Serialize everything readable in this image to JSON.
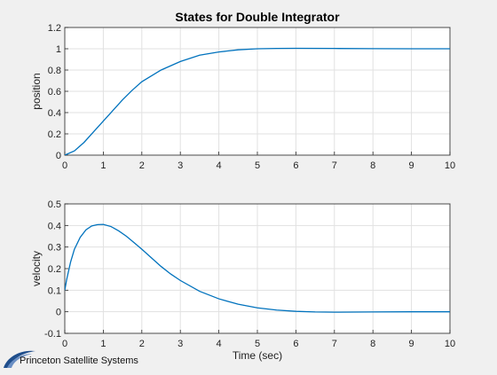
{
  "logo": {
    "text": "Princeton Satellite Systems",
    "color": "#1f4e8c"
  },
  "chart_data": [
    {
      "type": "line",
      "title": "States for Double Integrator",
      "xlabel": "",
      "ylabel": "position",
      "xlim": [
        0,
        10
      ],
      "ylim": [
        0,
        1.2
      ],
      "xticks": [
        "0",
        "1",
        "2",
        "3",
        "4",
        "5",
        "6",
        "7",
        "8",
        "9",
        "10"
      ],
      "yticks": [
        "0",
        "0.2",
        "0.4",
        "0.6",
        "0.8",
        "1",
        "1.2"
      ],
      "grid": true,
      "series": [
        {
          "color": "#0072bd",
          "x": [
            0,
            0.25,
            0.5,
            0.75,
            1.0,
            1.25,
            1.5,
            1.75,
            2.0,
            2.5,
            3.0,
            3.5,
            4.0,
            4.5,
            5.0,
            5.5,
            6.0,
            7.0,
            8.0,
            9.0,
            10.0
          ],
          "y": [
            0,
            0.04,
            0.12,
            0.22,
            0.32,
            0.42,
            0.52,
            0.61,
            0.69,
            0.8,
            0.88,
            0.94,
            0.97,
            0.99,
            1.0,
            1.003,
            1.004,
            1.003,
            1.001,
            1.0,
            1.0
          ]
        }
      ]
    },
    {
      "type": "line",
      "title": "",
      "xlabel": "Time (sec)",
      "ylabel": "velocity",
      "xlim": [
        0,
        10
      ],
      "ylim": [
        -0.1,
        0.5
      ],
      "xticks": [
        "0",
        "1",
        "2",
        "3",
        "4",
        "5",
        "6",
        "7",
        "8",
        "9",
        "10"
      ],
      "yticks": [
        "-0.1",
        "0",
        "0.1",
        "0.2",
        "0.3",
        "0.4",
        "0.5"
      ],
      "grid": true,
      "series": [
        {
          "color": "#0072bd",
          "x": [
            0,
            0.05,
            0.15,
            0.25,
            0.4,
            0.55,
            0.7,
            0.85,
            1.0,
            1.2,
            1.4,
            1.6,
            1.8,
            2.0,
            2.25,
            2.5,
            2.75,
            3.0,
            3.5,
            4.0,
            4.5,
            5.0,
            5.5,
            6.0,
            6.5,
            7.0,
            8.0,
            9.0,
            10.0
          ],
          "y": [
            0.1,
            0.15,
            0.23,
            0.29,
            0.345,
            0.38,
            0.398,
            0.404,
            0.405,
            0.395,
            0.375,
            0.35,
            0.32,
            0.29,
            0.25,
            0.21,
            0.175,
            0.145,
            0.095,
            0.06,
            0.035,
            0.018,
            0.008,
            0.002,
            -0.001,
            -0.002,
            -0.001,
            0.0,
            0.0
          ]
        }
      ]
    }
  ]
}
